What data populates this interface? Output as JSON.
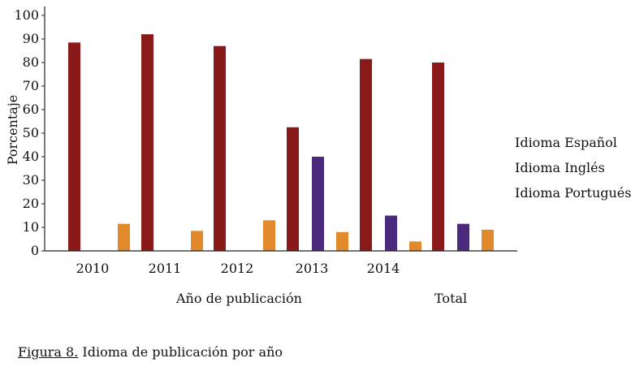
{
  "chart_data": {
    "type": "bar",
    "categories": [
      "2010",
      "2011",
      "2012",
      "2013",
      "2014",
      "Total"
    ],
    "series": [
      {
        "name": "Idioma Español",
        "color": "#8a1a1a",
        "values": [
          88.5,
          92,
          87,
          52.5,
          81.5,
          80
        ]
      },
      {
        "name": "Idioma Inglés",
        "color": "#4b2a7d",
        "values": [
          0,
          0,
          0,
          40,
          15,
          11.5
        ]
      },
      {
        "name": "Idioma Portugués",
        "color": "#e08a2c",
        "values": [
          11.5,
          8.5,
          13,
          8,
          4,
          9
        ]
      }
    ],
    "yticks": [
      "0",
      "10",
      "20",
      "30",
      "40",
      "50",
      "60",
      "70",
      "80",
      "90",
      "100"
    ],
    "ylim": [
      0,
      100
    ],
    "ylabel": "Porcentaje",
    "xlabel": "Año de publicación",
    "xlabel_total": "Total",
    "legend_position": "right"
  },
  "caption": {
    "figure": "Figura 8.",
    "text": " Idioma de publicación por año"
  }
}
